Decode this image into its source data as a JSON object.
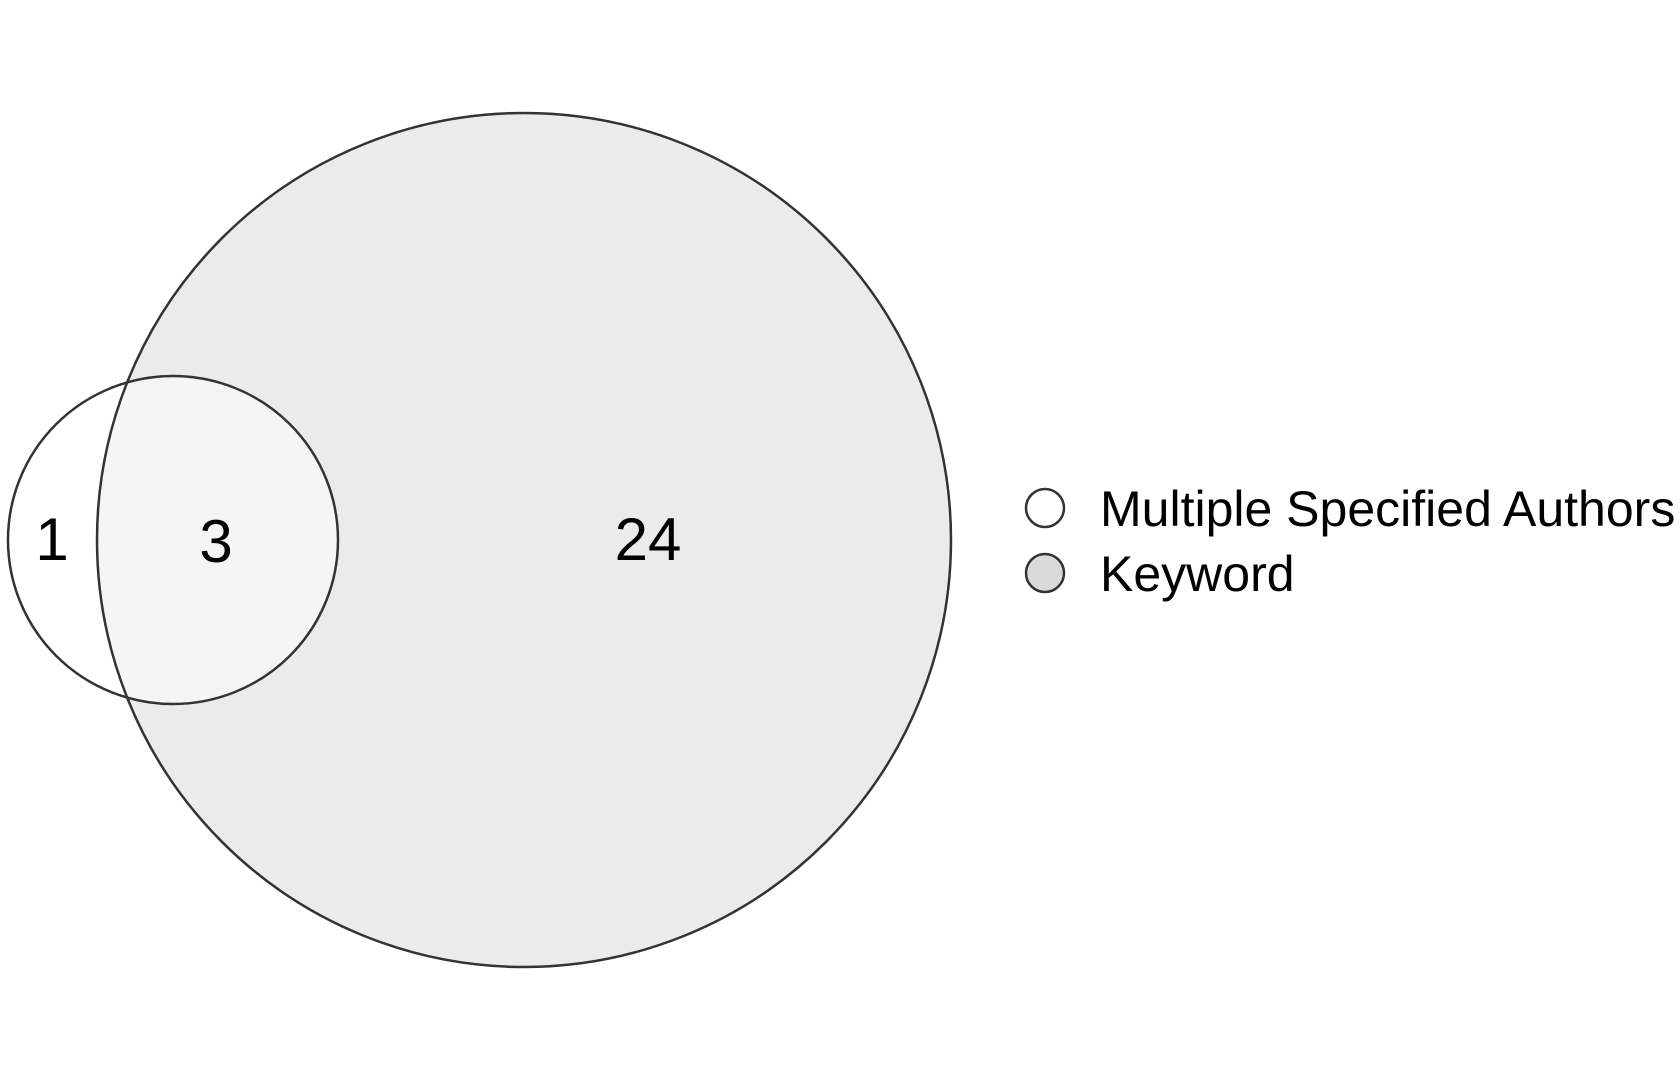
{
  "sets": [
    {
      "name": "Multiple Specified Authors",
      "color": "#ffffff"
    },
    {
      "name": "Keyword",
      "color": "#dadada"
    }
  ],
  "regions": {
    "only_authors": "1",
    "intersection": "3",
    "only_keyword": "24"
  },
  "colors": {
    "keyword_fill": "#ebebeb",
    "intersection_fill": "#f5f5f5",
    "outline": "#333333"
  }
}
